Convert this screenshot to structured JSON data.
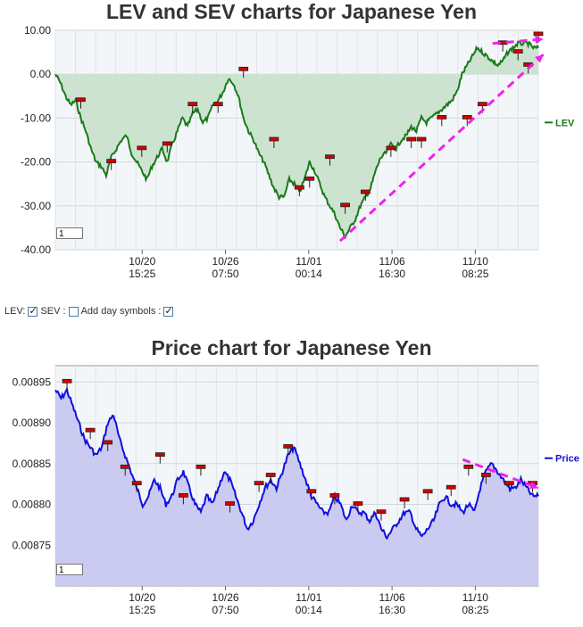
{
  "chart_data": [
    {
      "type": "line",
      "title": "LEV and SEV charts for Japanese Yen",
      "legend": "LEV",
      "legend_placement": "right",
      "grid": true,
      "ylim": [
        -40,
        10
      ],
      "y_ticks": [
        "10.00",
        "0.00",
        "-10.00",
        "-20.00",
        "-30.00",
        "-40.00"
      ],
      "x_ticks": [
        [
          "10/20",
          "15:25"
        ],
        [
          "10/26",
          "07:50"
        ],
        [
          "11/01",
          "00:14"
        ],
        [
          "11/06",
          "16:30"
        ],
        [
          "11/10",
          "08:25"
        ]
      ],
      "zoom_value": "1",
      "series": [
        {
          "name": "LEV",
          "color": "#1a7a1a",
          "fill": "#c9e3cc",
          "values": [
            0,
            -2,
            -5,
            -7,
            -6,
            -10,
            -13,
            -17,
            -20,
            -21,
            -23,
            -19,
            -17,
            -15,
            -14,
            -18,
            -20,
            -22,
            -24,
            -21,
            -19,
            -17,
            -20,
            -16,
            -13,
            -10,
            -12,
            -9,
            -8,
            -11,
            -10,
            -7,
            -6,
            -4,
            -1,
            -2,
            -5,
            -10,
            -13,
            -15,
            -18,
            -20,
            -23,
            -26,
            -28,
            -28,
            -24,
            -25,
            -27,
            -24,
            -20,
            -22,
            -25,
            -28,
            -30,
            -32,
            -35,
            -37,
            -35,
            -33,
            -30,
            -28,
            -26,
            -22,
            -19,
            -18,
            -16,
            -17,
            -15,
            -14,
            -12,
            -13,
            -10,
            -11,
            -10,
            -9,
            -8,
            -7,
            -6,
            -4,
            0,
            2,
            4,
            6,
            5,
            4,
            3,
            2,
            3,
            5,
            6,
            7,
            7,
            7,
            6,
            6
          ]
        }
      ],
      "day_markers": [
        {
          "i": 5,
          "v": -6
        },
        {
          "i": 11,
          "v": -20
        },
        {
          "i": 17,
          "v": -17
        },
        {
          "i": 22,
          "v": -16
        },
        {
          "i": 27,
          "v": -7
        },
        {
          "i": 32,
          "v": -7
        },
        {
          "i": 37,
          "v": 1
        },
        {
          "i": 43,
          "v": -15
        },
        {
          "i": 48,
          "v": -26
        },
        {
          "i": 50,
          "v": -24
        },
        {
          "i": 54,
          "v": -19
        },
        {
          "i": 57,
          "v": -30
        },
        {
          "i": 61,
          "v": -27
        },
        {
          "i": 66,
          "v": -17
        },
        {
          "i": 70,
          "v": -15
        },
        {
          "i": 72,
          "v": -15
        },
        {
          "i": 76,
          "v": -10
        },
        {
          "i": 81,
          "v": -10
        },
        {
          "i": 84,
          "v": -7
        },
        {
          "i": 88,
          "v": 7
        },
        {
          "i": 91,
          "v": 5
        },
        {
          "i": 93,
          "v": 2
        },
        {
          "i": 95,
          "v": 9
        }
      ],
      "trend_lines": [
        {
          "from": {
            "i": 56,
            "v": -38
          },
          "to": {
            "i": 96,
            "v": 4.5
          }
        },
        {
          "from": {
            "i": 86,
            "v": 7
          },
          "to": {
            "i": 96,
            "v": 8
          }
        }
      ]
    },
    {
      "type": "line",
      "title": "Price chart for Japanese Yen",
      "legend": "Price",
      "legend_placement": "right",
      "grid": true,
      "ylim": [
        0.0087,
        0.00897
      ],
      "y_ticks": [
        "0.00895",
        "0.00890",
        "0.00885",
        "0.00880",
        "0.00875"
      ],
      "x_ticks": [
        [
          "10/20",
          "15:25"
        ],
        [
          "10/26",
          "07:50"
        ],
        [
          "11/01",
          "00:14"
        ],
        [
          "11/06",
          "16:30"
        ],
        [
          "11/10",
          "08:25"
        ]
      ],
      "zoom_value": "1",
      "series": [
        {
          "name": "Price",
          "color": "#1010dd",
          "fill": "#c8c8f0",
          "values": [
            0.00894,
            0.00893,
            0.00894,
            0.00892,
            0.0089,
            0.00888,
            0.00887,
            0.00886,
            0.00887,
            0.0089,
            0.00891,
            0.00888,
            0.00886,
            0.00884,
            0.00882,
            0.0088,
            0.00881,
            0.00883,
            0.00882,
            0.0088,
            0.00881,
            0.00883,
            0.00884,
            0.00882,
            0.0088,
            0.00879,
            0.00881,
            0.0088,
            0.00882,
            0.00884,
            0.00883,
            0.00881,
            0.00879,
            0.00877,
            0.00878,
            0.0088,
            0.00882,
            0.00883,
            0.00882,
            0.00884,
            0.00886,
            0.00887,
            0.00885,
            0.00883,
            0.00881,
            0.0088,
            0.00879,
            0.00879,
            0.00881,
            0.0088,
            0.00878,
            0.0088,
            0.00879,
            0.00879,
            0.00878,
            0.00879,
            0.00877,
            0.00876,
            0.00877,
            0.00878,
            0.00879,
            0.00879,
            0.00877,
            0.00876,
            0.00877,
            0.00878,
            0.0088,
            0.00881,
            0.0088,
            0.0088,
            0.00879,
            0.0088,
            0.00879,
            0.00882,
            0.00884,
            0.00885,
            0.00884,
            0.00883,
            0.00882,
            0.00882,
            0.00883,
            0.00882,
            0.00881,
            0.00881
          ]
        }
      ],
      "day_markers": [
        {
          "i": 2,
          "v": 0.00895
        },
        {
          "i": 6,
          "v": 0.00889
        },
        {
          "i": 9,
          "v": 0.008875
        },
        {
          "i": 12,
          "v": 0.008845
        },
        {
          "i": 14,
          "v": 0.008825
        },
        {
          "i": 18,
          "v": 0.00886
        },
        {
          "i": 22,
          "v": 0.00881
        },
        {
          "i": 25,
          "v": 0.008845
        },
        {
          "i": 30,
          "v": 0.0088
        },
        {
          "i": 35,
          "v": 0.008825
        },
        {
          "i": 37,
          "v": 0.008835
        },
        {
          "i": 40,
          "v": 0.00887
        },
        {
          "i": 44,
          "v": 0.008815
        },
        {
          "i": 48,
          "v": 0.00881
        },
        {
          "i": 52,
          "v": 0.0088
        },
        {
          "i": 56,
          "v": 0.00879
        },
        {
          "i": 60,
          "v": 0.008805
        },
        {
          "i": 64,
          "v": 0.008815
        },
        {
          "i": 68,
          "v": 0.00882
        },
        {
          "i": 71,
          "v": 0.008845
        },
        {
          "i": 74,
          "v": 0.008835
        },
        {
          "i": 78,
          "v": 0.008825
        },
        {
          "i": 82,
          "v": 0.008825
        }
      ],
      "trend_lines": [
        {
          "from": {
            "i": 70,
            "v": 0.008855
          },
          "to": {
            "i": 83,
            "v": 0.00882
          }
        }
      ]
    }
  ],
  "controls": {
    "lev_label": "LEV:",
    "sev_label": "SEV :",
    "day_symbols_label": "Add day symbols :",
    "lev_checked": true,
    "sev_checked": false,
    "day_symbols_checked": true
  }
}
